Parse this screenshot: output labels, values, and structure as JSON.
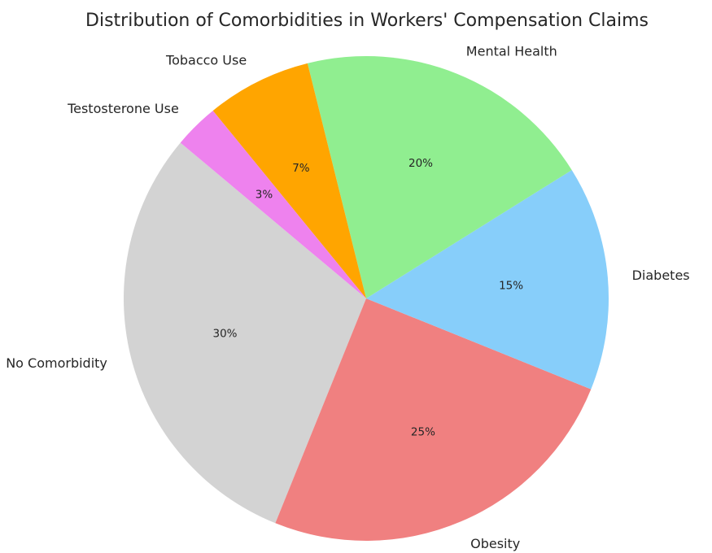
{
  "chart_data": {
    "type": "pie",
    "title": "Distribution of Comorbidities in Workers' Compensation Claims",
    "labels": [
      "No Comorbidity",
      "Obesity",
      "Diabetes",
      "Mental Health",
      "Tobacco Use",
      "Testosterone Use"
    ],
    "values": [
      30,
      25,
      15,
      20,
      7,
      3
    ],
    "percent_labels": [
      "30%",
      "25%",
      "15%",
      "20%",
      "7%",
      "3%"
    ],
    "colors": [
      "#d3d3d3",
      "#f08080",
      "#87cefa",
      "#90ee90",
      "#ffa500",
      "#ee82ee"
    ],
    "start_angle_deg": 140,
    "direction": "counterclockwise",
    "legend": "none"
  }
}
